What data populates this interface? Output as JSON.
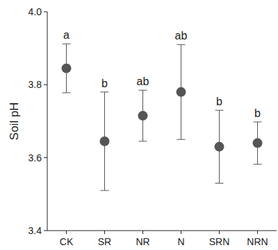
{
  "chart_data": {
    "type": "dot",
    "y_label": "Soil pH",
    "categories": [
      "CK",
      "SR",
      "NR",
      "N",
      "SRN",
      "NRN"
    ],
    "values": [
      3.845,
      3.645,
      3.715,
      3.78,
      3.63,
      3.64
    ],
    "errors": [
      0.067,
      0.135,
      0.07,
      0.13,
      0.1,
      0.058
    ],
    "annotations": [
      "a",
      "b",
      "ab",
      "ab",
      "b",
      "b"
    ],
    "color": "#555555",
    "ylim": [
      3.4,
      4.0
    ],
    "yticks": [
      {
        "value": 3.4,
        "label": "3.4"
      },
      {
        "value": 3.6,
        "label": "3.6"
      },
      {
        "value": 3.8,
        "label": "3.8"
      },
      {
        "value": 4.0,
        "label": "4.0"
      }
    ],
    "grid": false
  }
}
